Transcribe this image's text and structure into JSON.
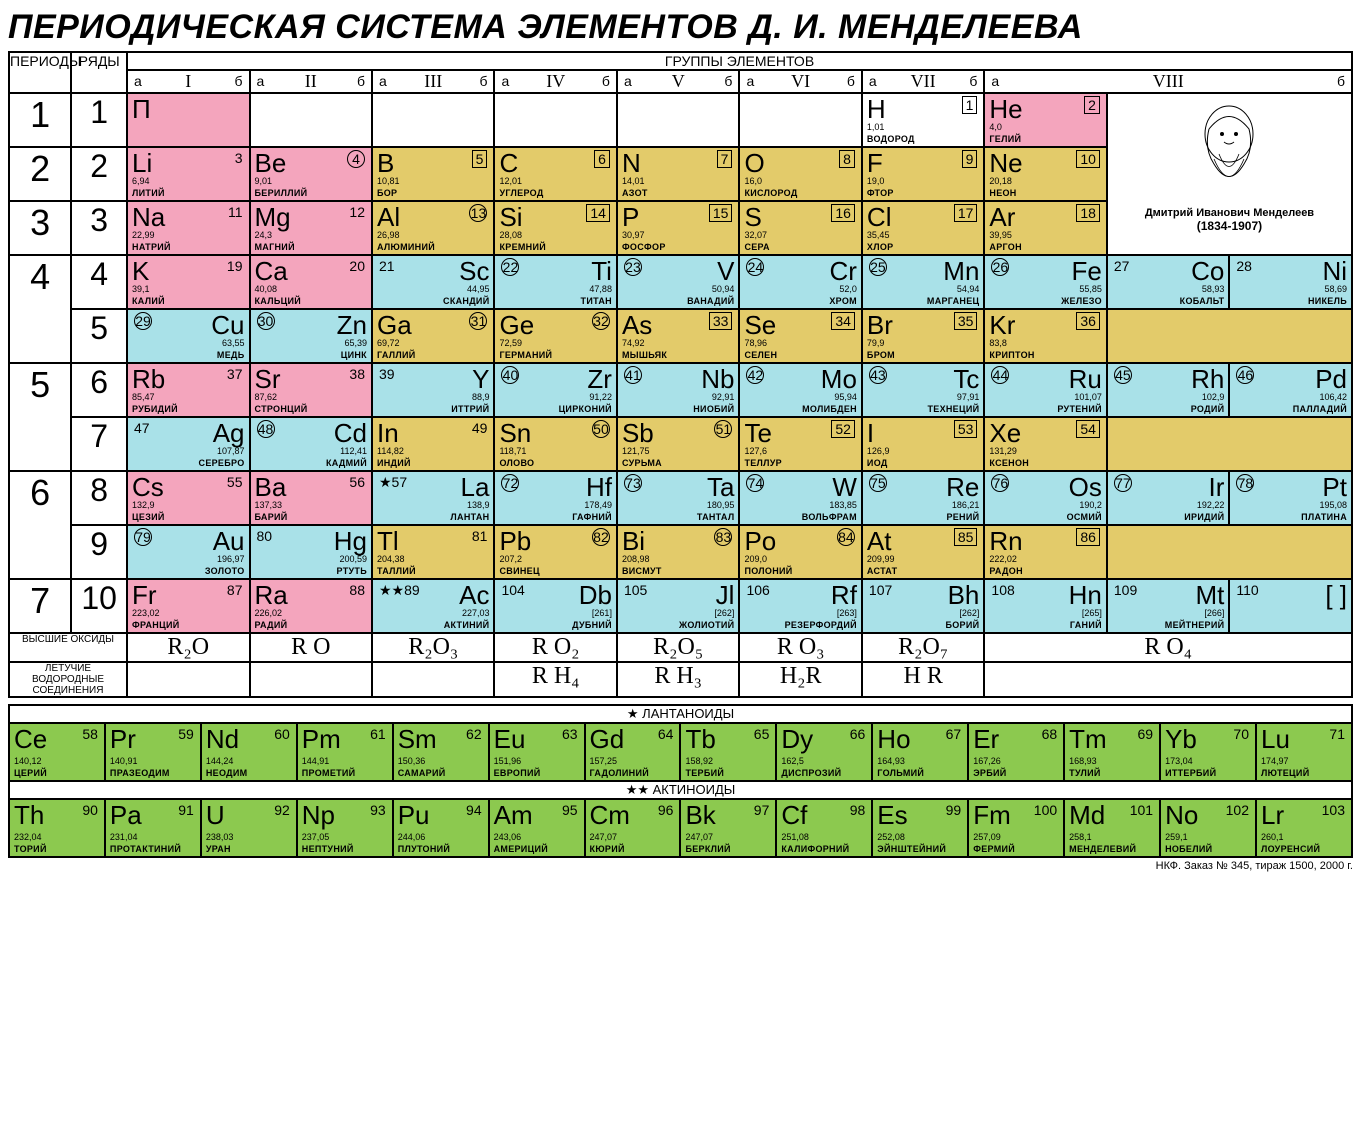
{
  "title": "ПЕРИОДИЧЕСКАЯ СИСТЕМА ЭЛЕМЕНТОВ Д. И. МЕНДЕЛЕЕВА",
  "headers": {
    "periods": "ПЕРИОДЫ",
    "rows": "РЯДЫ",
    "groups": "ГРУППЫ ЭЛЕМЕНТОВ",
    "a": "а",
    "b": "б",
    "romans": [
      "I",
      "II",
      "III",
      "IV",
      "V",
      "VI",
      "VII",
      "VIII"
    ]
  },
  "portrait": {
    "name": "Дмитрий Иванович Менделеев",
    "years": "(1834-1907)"
  },
  "periods": [
    "1",
    "2",
    "3",
    "4",
    "5",
    "6",
    "7"
  ],
  "rows": [
    "1",
    "2",
    "3",
    "4",
    "5",
    "6",
    "7",
    "8",
    "9",
    "10"
  ],
  "oxides_label": "ВЫСШИЕ ОКСИДЫ",
  "hydrides_label": "ЛЕТУЧИЕ ВОДОРОДНЫЕ СОЕДИНЕНИЯ",
  "oxides": [
    "R₂O",
    "R O",
    "R₂O₃",
    "R O₂",
    "R₂O₅",
    "R O₃",
    "R₂O₇",
    "R O₄"
  ],
  "hydrides": [
    "",
    "",
    "",
    "R H₄",
    "R H₃",
    "H₂R",
    "H R",
    ""
  ],
  "lanthanoids_label": "★ ЛАНТАНОИДЫ",
  "actinoids_label": "★★ АКТИНОИДЫ",
  "footer": "НКФ. Заказ № 345, тираж 1500, 2000 г.",
  "colors": {
    "pink": "#f4a5bd",
    "yellow": "#e3cb6a",
    "cyan": "#a9e1e8",
    "green": "#8cc94f",
    "white": "#ffffff",
    "border": "#000000"
  },
  "main_rows": [
    [
      {
        "sym": "П",
        "num": "",
        "mass": "",
        "name": "",
        "color": "pink",
        "align": "left",
        "numstyle": ""
      },
      null,
      null,
      null,
      null,
      null,
      {
        "sym": "H",
        "num": "1",
        "mass": "1,01",
        "name": "ВОДОРОД",
        "color": "white",
        "align": "left",
        "numstyle": "box"
      },
      {
        "sym": "He",
        "num": "2",
        "mass": "4,0",
        "name": "ГЕЛИЙ",
        "color": "pink",
        "align": "left",
        "numstyle": "box"
      }
    ],
    [
      {
        "sym": "Li",
        "num": "3",
        "mass": "6,94",
        "name": "ЛИТИЙ",
        "color": "pink",
        "align": "left",
        "numstyle": ""
      },
      {
        "sym": "Be",
        "num": "4",
        "mass": "9,01",
        "name": "БЕРИЛЛИЙ",
        "color": "pink",
        "align": "left",
        "numstyle": "circ"
      },
      {
        "sym": "B",
        "num": "5",
        "mass": "10,81",
        "name": "БОР",
        "color": "yellow",
        "align": "left",
        "numstyle": "box"
      },
      {
        "sym": "C",
        "num": "6",
        "mass": "12,01",
        "name": "УГЛЕРОД",
        "color": "yellow",
        "align": "left",
        "numstyle": "box"
      },
      {
        "sym": "N",
        "num": "7",
        "mass": "14,01",
        "name": "АЗОТ",
        "color": "yellow",
        "align": "left",
        "numstyle": "box"
      },
      {
        "sym": "O",
        "num": "8",
        "mass": "16,0",
        "name": "КИСЛОРОД",
        "color": "yellow",
        "align": "left",
        "numstyle": "box"
      },
      {
        "sym": "F",
        "num": "9",
        "mass": "19,0",
        "name": "ФТОР",
        "color": "yellow",
        "align": "left",
        "numstyle": "box"
      },
      {
        "sym": "Ne",
        "num": "10",
        "mass": "20,18",
        "name": "НЕОН",
        "color": "yellow",
        "align": "left",
        "numstyle": "box"
      }
    ],
    [
      {
        "sym": "Na",
        "num": "11",
        "mass": "22,99",
        "name": "НАТРИЙ",
        "color": "pink",
        "align": "left",
        "numstyle": ""
      },
      {
        "sym": "Mg",
        "num": "12",
        "mass": "24,3",
        "name": "МАГНИЙ",
        "color": "pink",
        "align": "left",
        "numstyle": ""
      },
      {
        "sym": "Al",
        "num": "13",
        "mass": "26,98",
        "name": "АЛЮМИНИЙ",
        "color": "yellow",
        "align": "left",
        "numstyle": "circ"
      },
      {
        "sym": "Si",
        "num": "14",
        "mass": "28,08",
        "name": "КРЕМНИЙ",
        "color": "yellow",
        "align": "left",
        "numstyle": "box"
      },
      {
        "sym": "P",
        "num": "15",
        "mass": "30,97",
        "name": "ФОСФОР",
        "color": "yellow",
        "align": "left",
        "numstyle": "box"
      },
      {
        "sym": "S",
        "num": "16",
        "mass": "32,07",
        "name": "СЕРА",
        "color": "yellow",
        "align": "left",
        "numstyle": "box"
      },
      {
        "sym": "Cl",
        "num": "17",
        "mass": "35,45",
        "name": "ХЛОР",
        "color": "yellow",
        "align": "left",
        "numstyle": "box"
      },
      {
        "sym": "Ar",
        "num": "18",
        "mass": "39,95",
        "name": "АРГОН",
        "color": "yellow",
        "align": "left",
        "numstyle": "box"
      }
    ],
    [
      {
        "sym": "K",
        "num": "19",
        "mass": "39,1",
        "name": "КАЛИЙ",
        "color": "pink",
        "align": "left",
        "numstyle": ""
      },
      {
        "sym": "Ca",
        "num": "20",
        "mass": "40,08",
        "name": "КАЛЬЦИЙ",
        "color": "pink",
        "align": "left",
        "numstyle": ""
      },
      {
        "sym": "Sc",
        "num": "21",
        "mass": "44,95",
        "name": "СКАНДИЙ",
        "color": "cyan",
        "align": "right",
        "numstyle": ""
      },
      {
        "sym": "Ti",
        "num": "22",
        "mass": "47,88",
        "name": "ТИТАН",
        "color": "cyan",
        "align": "right",
        "numstyle": "circ"
      },
      {
        "sym": "V",
        "num": "23",
        "mass": "50,94",
        "name": "ВАНАДИЙ",
        "color": "cyan",
        "align": "right",
        "numstyle": "circ"
      },
      {
        "sym": "Cr",
        "num": "24",
        "mass": "52,0",
        "name": "ХРОМ",
        "color": "cyan",
        "align": "right",
        "numstyle": "circ"
      },
      {
        "sym": "Mn",
        "num": "25",
        "mass": "54,94",
        "name": "МАРГАНЕЦ",
        "color": "cyan",
        "align": "right",
        "numstyle": "circ"
      },
      {
        "sym": "Fe",
        "num": "26",
        "mass": "55,85",
        "name": "ЖЕЛЕЗО",
        "color": "cyan",
        "align": "right",
        "numstyle": "circ"
      },
      {
        "sym": "Co",
        "num": "27",
        "mass": "58,93",
        "name": "КОБАЛЬТ",
        "color": "cyan",
        "align": "right",
        "numstyle": ""
      },
      {
        "sym": "Ni",
        "num": "28",
        "mass": "58,69",
        "name": "НИКЕЛЬ",
        "color": "cyan",
        "align": "right",
        "numstyle": ""
      }
    ],
    [
      {
        "sym": "Cu",
        "num": "29",
        "mass": "63,55",
        "name": "МЕДЬ",
        "color": "cyan",
        "align": "right",
        "numstyle": "circ"
      },
      {
        "sym": "Zn",
        "num": "30",
        "mass": "65,39",
        "name": "ЦИНК",
        "color": "cyan",
        "align": "right",
        "numstyle": "circ"
      },
      {
        "sym": "Ga",
        "num": "31",
        "mass": "69,72",
        "name": "ГАЛЛИЙ",
        "color": "yellow",
        "align": "left",
        "numstyle": "circ"
      },
      {
        "sym": "Ge",
        "num": "32",
        "mass": "72,59",
        "name": "ГЕРМАНИЙ",
        "color": "yellow",
        "align": "left",
        "numstyle": "circ"
      },
      {
        "sym": "As",
        "num": "33",
        "mass": "74,92",
        "name": "МЫШЬЯК",
        "color": "yellow",
        "align": "left",
        "numstyle": "box"
      },
      {
        "sym": "Se",
        "num": "34",
        "mass": "78,96",
        "name": "СЕЛЕН",
        "color": "yellow",
        "align": "left",
        "numstyle": "box"
      },
      {
        "sym": "Br",
        "num": "35",
        "mass": "79,9",
        "name": "БРОМ",
        "color": "yellow",
        "align": "left",
        "numstyle": "box"
      },
      {
        "sym": "Kr",
        "num": "36",
        "mass": "83,8",
        "name": "КРИПТОН",
        "color": "yellow",
        "align": "left",
        "numstyle": "box"
      },
      {
        "color": "yellow"
      }
    ],
    [
      {
        "sym": "Rb",
        "num": "37",
        "mass": "85,47",
        "name": "РУБИДИЙ",
        "color": "pink",
        "align": "left",
        "numstyle": ""
      },
      {
        "sym": "Sr",
        "num": "38",
        "mass": "87,62",
        "name": "СТРОНЦИЙ",
        "color": "pink",
        "align": "left",
        "numstyle": ""
      },
      {
        "sym": "Y",
        "num": "39",
        "mass": "88,9",
        "name": "ИТТРИЙ",
        "color": "cyan",
        "align": "right",
        "numstyle": ""
      },
      {
        "sym": "Zr",
        "num": "40",
        "mass": "91,22",
        "name": "ЦИРКОНИЙ",
        "color": "cyan",
        "align": "right",
        "numstyle": "circ"
      },
      {
        "sym": "Nb",
        "num": "41",
        "mass": "92,91",
        "name": "НИОБИЙ",
        "color": "cyan",
        "align": "right",
        "numstyle": "circ"
      },
      {
        "sym": "Mo",
        "num": "42",
        "mass": "95,94",
        "name": "МОЛИБДЕН",
        "color": "cyan",
        "align": "right",
        "numstyle": "circ"
      },
      {
        "sym": "Tc",
        "num": "43",
        "mass": "97,91",
        "name": "ТЕХНЕЦИЙ",
        "color": "cyan",
        "align": "right",
        "numstyle": "circ"
      },
      {
        "sym": "Ru",
        "num": "44",
        "mass": "101,07",
        "name": "РУТЕНИЙ",
        "color": "cyan",
        "align": "right",
        "numstyle": "circ"
      },
      {
        "sym": "Rh",
        "num": "45",
        "mass": "102,9",
        "name": "РОДИЙ",
        "color": "cyan",
        "align": "right",
        "numstyle": "circ"
      },
      {
        "sym": "Pd",
        "num": "46",
        "mass": "106,42",
        "name": "ПАЛЛАДИЙ",
        "color": "cyan",
        "align": "right",
        "numstyle": "circ"
      }
    ],
    [
      {
        "sym": "Ag",
        "num": "47",
        "mass": "107,87",
        "name": "СЕРЕБРО",
        "color": "cyan",
        "align": "right",
        "numstyle": ""
      },
      {
        "sym": "Cd",
        "num": "48",
        "mass": "112,41",
        "name": "КАДМИЙ",
        "color": "cyan",
        "align": "right",
        "numstyle": "circ"
      },
      {
        "sym": "In",
        "num": "49",
        "mass": "114,82",
        "name": "ИНДИЙ",
        "color": "yellow",
        "align": "left",
        "numstyle": ""
      },
      {
        "sym": "Sn",
        "num": "50",
        "mass": "118,71",
        "name": "ОЛОВО",
        "color": "yellow",
        "align": "left",
        "numstyle": "circ"
      },
      {
        "sym": "Sb",
        "num": "51",
        "mass": "121,75",
        "name": "СУРЬМА",
        "color": "yellow",
        "align": "left",
        "numstyle": "circ"
      },
      {
        "sym": "Te",
        "num": "52",
        "mass": "127,6",
        "name": "ТЕЛЛУР",
        "color": "yellow",
        "align": "left",
        "numstyle": "box"
      },
      {
        "sym": "I",
        "num": "53",
        "mass": "126,9",
        "name": "ИОД",
        "color": "yellow",
        "align": "left",
        "numstyle": "box"
      },
      {
        "sym": "Xe",
        "num": "54",
        "mass": "131,29",
        "name": "КСЕНОН",
        "color": "yellow",
        "align": "left",
        "numstyle": "box"
      },
      {
        "color": "yellow"
      }
    ],
    [
      {
        "sym": "Cs",
        "num": "55",
        "mass": "132,9",
        "name": "ЦЕЗИЙ",
        "color": "pink",
        "align": "left",
        "numstyle": ""
      },
      {
        "sym": "Ba",
        "num": "56",
        "mass": "137,33",
        "name": "БАРИЙ",
        "color": "pink",
        "align": "left",
        "numstyle": ""
      },
      {
        "sym": "La",
        "num": "★57",
        "mass": "138,9",
        "name": "ЛАНТАН",
        "color": "cyan",
        "align": "right",
        "numstyle": ""
      },
      {
        "sym": "Hf",
        "num": "72",
        "mass": "178,49",
        "name": "ГАФНИЙ",
        "color": "cyan",
        "align": "right",
        "numstyle": "circ"
      },
      {
        "sym": "Ta",
        "num": "73",
        "mass": "180,95",
        "name": "ТАНТАЛ",
        "color": "cyan",
        "align": "right",
        "numstyle": "circ"
      },
      {
        "sym": "W",
        "num": "74",
        "mass": "183,85",
        "name": "ВОЛЬФРАМ",
        "color": "cyan",
        "align": "right",
        "numstyle": "circ"
      },
      {
        "sym": "Re",
        "num": "75",
        "mass": "186,21",
        "name": "РЕНИЙ",
        "color": "cyan",
        "align": "right",
        "numstyle": "circ"
      },
      {
        "sym": "Os",
        "num": "76",
        "mass": "190,2",
        "name": "ОСМИЙ",
        "color": "cyan",
        "align": "right",
        "numstyle": "circ"
      },
      {
        "sym": "Ir",
        "num": "77",
        "mass": "192,22",
        "name": "ИРИДИЙ",
        "color": "cyan",
        "align": "right",
        "numstyle": "circ"
      },
      {
        "sym": "Pt",
        "num": "78",
        "mass": "195,08",
        "name": "ПЛАТИНА",
        "color": "cyan",
        "align": "right",
        "numstyle": "circ"
      }
    ],
    [
      {
        "sym": "Au",
        "num": "79",
        "mass": "196,97",
        "name": "ЗОЛОТО",
        "color": "cyan",
        "align": "right",
        "numstyle": "circ"
      },
      {
        "sym": "Hg",
        "num": "80",
        "mass": "200,59",
        "name": "РТУТЬ",
        "color": "cyan",
        "align": "right",
        "numstyle": ""
      },
      {
        "sym": "Tl",
        "num": "81",
        "mass": "204,38",
        "name": "ТАЛЛИЙ",
        "color": "yellow",
        "align": "left",
        "numstyle": ""
      },
      {
        "sym": "Pb",
        "num": "82",
        "mass": "207,2",
        "name": "СВИНЕЦ",
        "color": "yellow",
        "align": "left",
        "numstyle": "circ"
      },
      {
        "sym": "Bi",
        "num": "83",
        "mass": "208,98",
        "name": "ВИСМУТ",
        "color": "yellow",
        "align": "left",
        "numstyle": "circ"
      },
      {
        "sym": "Po",
        "num": "84",
        "mass": "209,0",
        "name": "ПОЛОНИЙ",
        "color": "yellow",
        "align": "left",
        "numstyle": "circ"
      },
      {
        "sym": "At",
        "num": "85",
        "mass": "209,99",
        "name": "АСТАТ",
        "color": "yellow",
        "align": "left",
        "numstyle": "box"
      },
      {
        "sym": "Rn",
        "num": "86",
        "mass": "222,02",
        "name": "РАДОН",
        "color": "yellow",
        "align": "left",
        "numstyle": "box"
      },
      {
        "color": "yellow"
      }
    ],
    [
      {
        "sym": "Fr",
        "num": "87",
        "mass": "223,02",
        "name": "ФРАНЦИЙ",
        "color": "pink",
        "align": "left",
        "numstyle": ""
      },
      {
        "sym": "Ra",
        "num": "88",
        "mass": "226,02",
        "name": "РАДИЙ",
        "color": "pink",
        "align": "left",
        "numstyle": ""
      },
      {
        "sym": "Ac",
        "num": "★★89",
        "mass": "227,03",
        "name": "АКТИНИЙ",
        "color": "cyan",
        "align": "right",
        "numstyle": ""
      },
      {
        "sym": "Db",
        "num": "104",
        "mass": "[261]",
        "name": "ДУБНИЙ",
        "color": "cyan",
        "align": "right",
        "numstyle": ""
      },
      {
        "sym": "Jl",
        "num": "105",
        "mass": "[262]",
        "name": "ЖОЛИОТИЙ",
        "color": "cyan",
        "align": "right",
        "numstyle": ""
      },
      {
        "sym": "Rf",
        "num": "106",
        "mass": "[263]",
        "name": "РЕЗЕРФОРДИЙ",
        "color": "cyan",
        "align": "right",
        "numstyle": ""
      },
      {
        "sym": "Bh",
        "num": "107",
        "mass": "[262]",
        "name": "БОРИЙ",
        "color": "cyan",
        "align": "right",
        "numstyle": ""
      },
      {
        "sym": "Hn",
        "num": "108",
        "mass": "[265]",
        "name": "ГАНИЙ",
        "color": "cyan",
        "align": "right",
        "numstyle": ""
      },
      {
        "sym": "Mt",
        "num": "109",
        "mass": "[266]",
        "name": "МЕЙТНЕРИЙ",
        "color": "cyan",
        "align": "right",
        "numstyle": ""
      },
      {
        "sym": "[ ]",
        "num": "110",
        "mass": "",
        "name": "",
        "color": "cyan",
        "align": "right",
        "numstyle": ""
      }
    ]
  ],
  "lanthanoids": [
    {
      "sym": "Ce",
      "num": "58",
      "mass": "140,12",
      "name": "ЦЕРИЙ"
    },
    {
      "sym": "Pr",
      "num": "59",
      "mass": "140,91",
      "name": "ПРАЗЕОДИМ"
    },
    {
      "sym": "Nd",
      "num": "60",
      "mass": "144,24",
      "name": "НЕОДИМ"
    },
    {
      "sym": "Pm",
      "num": "61",
      "mass": "144,91",
      "name": "ПРОМЕТИЙ"
    },
    {
      "sym": "Sm",
      "num": "62",
      "mass": "150,36",
      "name": "САМАРИЙ"
    },
    {
      "sym": "Eu",
      "num": "63",
      "mass": "151,96",
      "name": "ЕВРОПИЙ"
    },
    {
      "sym": "Gd",
      "num": "64",
      "mass": "157,25",
      "name": "ГАДОЛИНИЙ"
    },
    {
      "sym": "Tb",
      "num": "65",
      "mass": "158,92",
      "name": "ТЕРБИЙ"
    },
    {
      "sym": "Dy",
      "num": "66",
      "mass": "162,5",
      "name": "ДИСПРОЗИЙ"
    },
    {
      "sym": "Ho",
      "num": "67",
      "mass": "164,93",
      "name": "ГОЛЬМИЙ"
    },
    {
      "sym": "Er",
      "num": "68",
      "mass": "167,26",
      "name": "ЭРБИЙ"
    },
    {
      "sym": "Tm",
      "num": "69",
      "mass": "168,93",
      "name": "ТУЛИЙ"
    },
    {
      "sym": "Yb",
      "num": "70",
      "mass": "173,04",
      "name": "ИТТЕРБИЙ"
    },
    {
      "sym": "Lu",
      "num": "71",
      "mass": "174,97",
      "name": "ЛЮТЕЦИЙ"
    }
  ],
  "actinoids": [
    {
      "sym": "Th",
      "num": "90",
      "mass": "232,04",
      "name": "ТОРИЙ"
    },
    {
      "sym": "Pa",
      "num": "91",
      "mass": "231,04",
      "name": "ПРОТАКТИНИЙ"
    },
    {
      "sym": "U",
      "num": "92",
      "mass": "238,03",
      "name": "УРАН"
    },
    {
      "sym": "Np",
      "num": "93",
      "mass": "237,05",
      "name": "НЕПТУНИЙ"
    },
    {
      "sym": "Pu",
      "num": "94",
      "mass": "244,06",
      "name": "ПЛУТОНИЙ"
    },
    {
      "sym": "Am",
      "num": "95",
      "mass": "243,06",
      "name": "АМЕРИЦИЙ"
    },
    {
      "sym": "Cm",
      "num": "96",
      "mass": "247,07",
      "name": "КЮРИЙ"
    },
    {
      "sym": "Bk",
      "num": "97",
      "mass": "247,07",
      "name": "БЕРКЛИЙ"
    },
    {
      "sym": "Cf",
      "num": "98",
      "mass": "251,08",
      "name": "КАЛИФОРНИЙ"
    },
    {
      "sym": "Es",
      "num": "99",
      "mass": "252,08",
      "name": "ЭЙНШТЕЙНИЙ"
    },
    {
      "sym": "Fm",
      "num": "100",
      "mass": "257,09",
      "name": "ФЕРМИЙ"
    },
    {
      "sym": "Md",
      "num": "101",
      "mass": "258,1",
      "name": "МЕНДЕЛЕВИЙ"
    },
    {
      "sym": "No",
      "num": "102",
      "mass": "259,1",
      "name": "НОБЕЛИЙ"
    },
    {
      "sym": "Lr",
      "num": "103",
      "mass": "260,1",
      "name": "ЛОУРЕНСИЙ"
    }
  ]
}
